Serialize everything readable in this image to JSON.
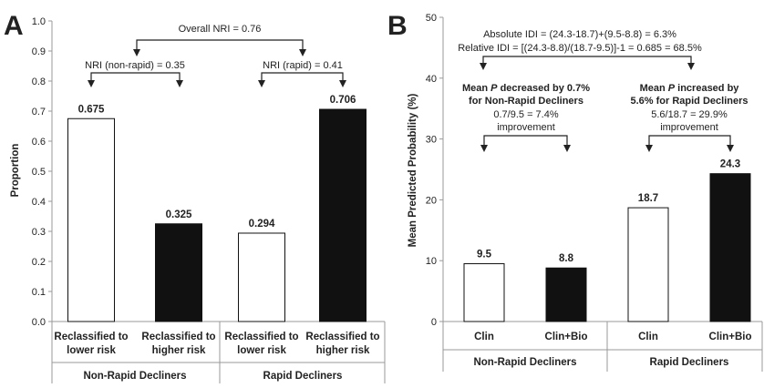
{
  "chart_data": [
    {
      "type": "bar",
      "panel_label": "A",
      "ylabel": "Proportion",
      "ylim": [
        0,
        1.0
      ],
      "y_ticks": [
        "0.0",
        "0.1",
        "0.2",
        "0.3",
        "0.4",
        "0.5",
        "0.6",
        "0.7",
        "0.8",
        "0.9",
        "1.0"
      ],
      "categories": [
        {
          "line1": "Reclassified to",
          "line2": "lower risk"
        },
        {
          "line1": "Reclassified to",
          "line2": "higher risk"
        },
        {
          "line1": "Reclassified to",
          "line2": "lower risk"
        },
        {
          "line1": "Reclassified to",
          "line2": "higher risk"
        }
      ],
      "groups": [
        "Non-Rapid Decliners",
        "Rapid Decliners"
      ],
      "values": [
        0.675,
        0.325,
        0.294,
        0.706
      ],
      "value_labels": [
        "0.675",
        "0.325",
        "0.294",
        "0.706"
      ],
      "bar_fills": [
        "white",
        "black",
        "white",
        "black"
      ],
      "annotations": {
        "overall": "Overall NRI = 0.76",
        "non_rapid": "NRI (non-rapid) = 0.35",
        "rapid": "NRI (rapid) = 0.41"
      },
      "grid": false
    },
    {
      "type": "bar",
      "panel_label": "B",
      "ylabel": "Mean Predicted Probability (%)",
      "ylim": [
        0,
        50
      ],
      "y_ticks": [
        "0",
        "10",
        "20",
        "30",
        "40",
        "50"
      ],
      "categories": [
        "Clin",
        "Clin+Bio",
        "Clin",
        "Clin+Bio"
      ],
      "groups": [
        "Non-Rapid Decliners",
        "Rapid Decliners"
      ],
      "values": [
        9.5,
        8.8,
        18.7,
        24.3
      ],
      "value_labels": [
        "9.5",
        "8.8",
        "18.7",
        "24.3"
      ],
      "bar_fills": [
        "white",
        "black",
        "white",
        "black"
      ],
      "annotations": {
        "absolute_idi": "Absolute IDI = (24.3-18.7)+(9.5-8.8) = 6.3%",
        "relative_idi": "Relative IDI = [(24.3-8.8)/(18.7-9.5)]-1 = 0.685 = 68.5%",
        "non_rapid_head_pre": "Mean",
        "non_rapid_head_p": "P",
        "non_rapid_head_post": "decreased by 0.7%",
        "non_rapid_head_line2": "for Non-Rapid Decliners",
        "non_rapid_calc": "0.7/9.5 = 7.4%",
        "non_rapid_improve": "improvement",
        "rapid_head_pre": "Mean",
        "rapid_head_p": "P",
        "rapid_head_post": "increased by",
        "rapid_head_line2": "5.6% for Rapid Decliners",
        "rapid_calc": "5.6/18.7 = 29.9%",
        "rapid_improve": "improvement"
      },
      "grid": false
    }
  ]
}
